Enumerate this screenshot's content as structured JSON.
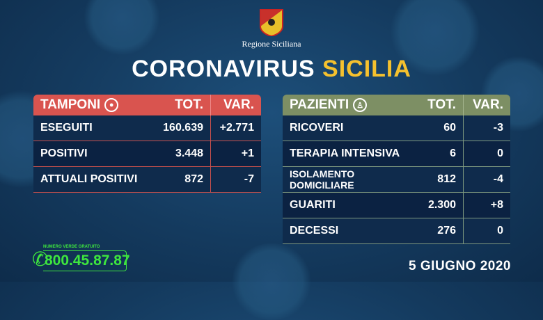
{
  "header": {
    "region": "Regione Siciliana",
    "title_a": "CORONAVIRUS",
    "title_b": "SICILIA"
  },
  "colors": {
    "accent": "#f5c12e",
    "tamponi": "#d9544f",
    "pazienti": "#7d8f64",
    "phone": "#3ee63e"
  },
  "tamponi": {
    "title": "TAMPONI",
    "icon": "swab-icon",
    "tot": "TOT.",
    "var": "VAR.",
    "rows": [
      {
        "label": "ESEGUITI",
        "tot": "160.639",
        "var": "+2.771"
      },
      {
        "label": "POSITIVI",
        "tot": "3.448",
        "var": "+1"
      },
      {
        "label": "ATTUALI POSITIVI",
        "tot": "872",
        "var": "-7"
      }
    ]
  },
  "pazienti": {
    "title": "PAZIENTI",
    "icon": "person-icon",
    "tot": "TOT.",
    "var": "VAR.",
    "rows": [
      {
        "label": "RICOVERI",
        "tot": "60",
        "var": "-3"
      },
      {
        "label": "TERAPIA INTENSIVA",
        "tot": "6",
        "var": "0"
      },
      {
        "label": "ISOLAMENTO DOMICILIARE",
        "tot": "812",
        "var": "-4"
      },
      {
        "label": "GUARITI",
        "tot": "2.300",
        "var": "+8"
      },
      {
        "label": "DECESSI",
        "tot": "276",
        "var": "0"
      }
    ]
  },
  "phone": {
    "label": "NUMERO VERDE GRATUITO",
    "number": "800.45.87.87"
  },
  "date": "5 GIUGNO 2020"
}
